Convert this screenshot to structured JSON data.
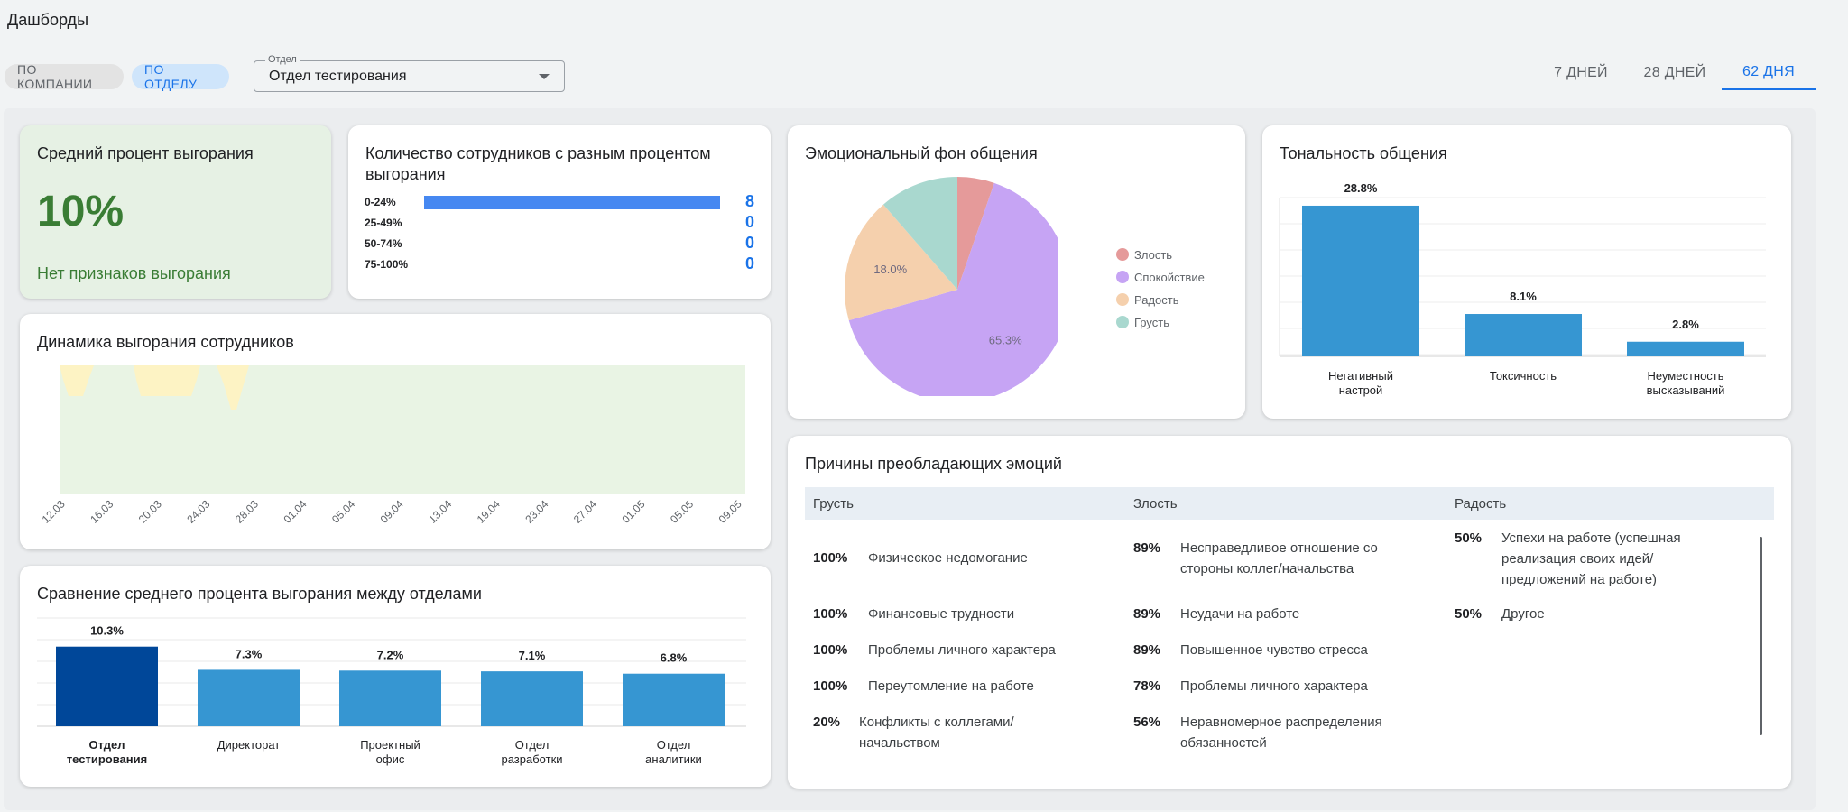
{
  "header": {
    "title": "Дашборды"
  },
  "filters": {
    "by_company": "ПО КОМПАНИИ",
    "by_department": "ПО ОТДЕЛУ",
    "department_label": "Отдел",
    "department_value": "Отдел тестирования"
  },
  "periods": [
    "7 ДНЕЙ",
    "28 ДНЕЙ",
    "62 ДНЯ"
  ],
  "active_period": "62 ДНЯ",
  "avg_burnout": {
    "title": "Средний процент выгорания",
    "value": "10%",
    "status": "Нет признаков выгорания"
  },
  "employee_count": {
    "title": "Количество сотрудников с разным процентом выгорания",
    "rows": [
      {
        "label": "0-24%",
        "count": "8",
        "share": 1.0
      },
      {
        "label": "25-49%",
        "count": "0",
        "share": 0
      },
      {
        "label": "50-74%",
        "count": "0",
        "share": 0
      },
      {
        "label": "75-100%",
        "count": "0",
        "share": 0
      }
    ]
  },
  "dynamics": {
    "title": "Динамика выгорания сотрудников",
    "dates": [
      "12.03",
      "16.03",
      "20.03",
      "24.03",
      "28.03",
      "01.04",
      "05.04",
      "09.04",
      "13.04",
      "19.04",
      "23.04",
      "27.04",
      "01.05",
      "05.05",
      "09.05"
    ],
    "colors": {
      "zone": "#e9f4e4",
      "spike": "#fdf3c4"
    }
  },
  "comparison": {
    "title": "Сравнение среднего процента выгорания между отделами",
    "departments": [
      {
        "name": "Отдел тестирования",
        "value": 10.3,
        "label": "10.3%",
        "highlight": true
      },
      {
        "name": "Директорат",
        "value": 7.3,
        "label": "7.3%",
        "highlight": false
      },
      {
        "name": "Проектный офис",
        "value": 7.2,
        "label": "7.2%",
        "highlight": false
      },
      {
        "name": "Отдел разработки",
        "value": 7.1,
        "label": "7.1%",
        "highlight": false
      },
      {
        "name": "Отдел аналитики",
        "value": 6.8,
        "label": "6.8%",
        "highlight": false
      }
    ],
    "colors": {
      "highlight": "#004799",
      "normal": "#3696d2"
    }
  },
  "emotions": {
    "title": "Эмоциональный фон общения",
    "slices": [
      {
        "name": "Злость",
        "value": 5.3,
        "color": "#e59a9a"
      },
      {
        "name": "Спокойствие",
        "value": 65.3,
        "label": "65.3%",
        "color": "#c6a4f4"
      },
      {
        "name": "Радость",
        "value": 18.0,
        "label": "18.0%",
        "color": "#f5d0ad"
      },
      {
        "name": "Грусть",
        "value": 11.4,
        "color": "#a9d8cf"
      }
    ]
  },
  "tone": {
    "title": "Тональность общения",
    "bars": [
      {
        "name": "Негативный настрой",
        "value": 28.8,
        "label": "28.8%"
      },
      {
        "name": "Токсичность",
        "value": 8.1,
        "label": "8.1%"
      },
      {
        "name": "Неуместность высказываний",
        "value": 2.8,
        "label": "2.8%"
      }
    ],
    "color": "#3696d2"
  },
  "reasons": {
    "title": "Причины преобладающих эмоций",
    "columns": [
      {
        "header": "Грусть",
        "items": [
          {
            "pct": "100%",
            "text": "Физическое недомогание"
          },
          {
            "pct": "100%",
            "text": "Финансовые трудности"
          },
          {
            "pct": "100%",
            "text": "Проблемы личного характера"
          },
          {
            "pct": "100%",
            "text": "Переутомление на работе"
          },
          {
            "pct": "20%",
            "text": "Конфликты с коллегами/ начальством"
          }
        ]
      },
      {
        "header": "Злость",
        "items": [
          {
            "pct": "89%",
            "text": "Несправедливое отношение со стороны коллег/начальства"
          },
          {
            "pct": "89%",
            "text": "Неудачи на работе"
          },
          {
            "pct": "89%",
            "text": "Повышенное чувство стресса"
          },
          {
            "pct": "78%",
            "text": "Проблемы личного характера"
          },
          {
            "pct": "56%",
            "text": "Неравномерное распределения обязанностей"
          }
        ]
      },
      {
        "header": "Радость",
        "items": [
          {
            "pct": "50%",
            "text": "Успехи на работе (успешная реализация своих идей/ предложений на работе)"
          },
          {
            "pct": "50%",
            "text": "Другое"
          }
        ]
      }
    ]
  }
}
